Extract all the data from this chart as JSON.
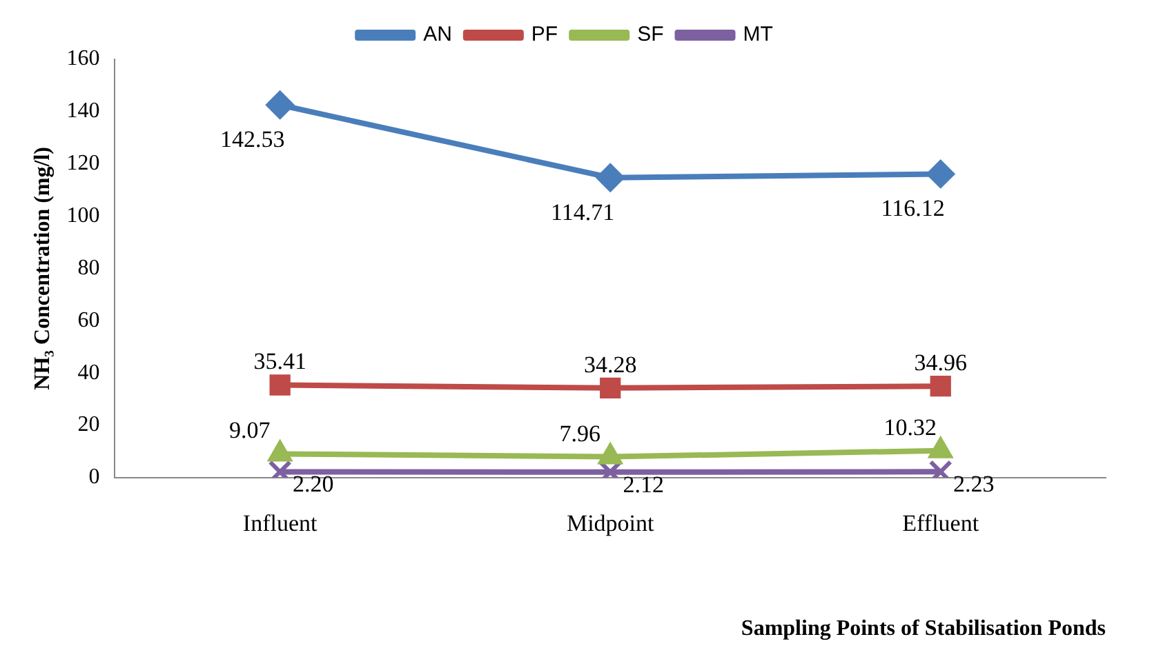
{
  "chart_data": {
    "type": "line",
    "xlabel": "Sampling Points of Stabilisation Ponds",
    "ylabel": "NH₃ Concentration (mg/l)",
    "categories": [
      "Influent",
      "Midpoint",
      "Effluent"
    ],
    "series": [
      {
        "name": "AN",
        "color": "#4a7ebb",
        "marker": "diamond",
        "values": [
          142.53,
          114.71,
          116.12
        ],
        "value_labels": [
          "142.53",
          "114.71",
          "116.12"
        ]
      },
      {
        "name": "PF",
        "color": "#be4b48",
        "marker": "square",
        "values": [
          35.41,
          34.28,
          34.96
        ],
        "value_labels": [
          "35.41",
          "34.28",
          "34.96"
        ]
      },
      {
        "name": "SF",
        "color": "#98b954",
        "marker": "triangle",
        "values": [
          9.07,
          7.96,
          10.32
        ],
        "value_labels": [
          "9.07",
          "7.96",
          "10.32"
        ]
      },
      {
        "name": "MT",
        "color": "#7d60a0",
        "marker": "cross",
        "values": [
          2.2,
          2.12,
          2.23
        ],
        "value_labels": [
          "2.20",
          "2.12",
          "2.23"
        ]
      }
    ],
    "ylim": [
      0,
      160
    ],
    "yticks": [
      0,
      20,
      40,
      60,
      80,
      100,
      120,
      140,
      160
    ],
    "grid": false,
    "legend": "top"
  }
}
